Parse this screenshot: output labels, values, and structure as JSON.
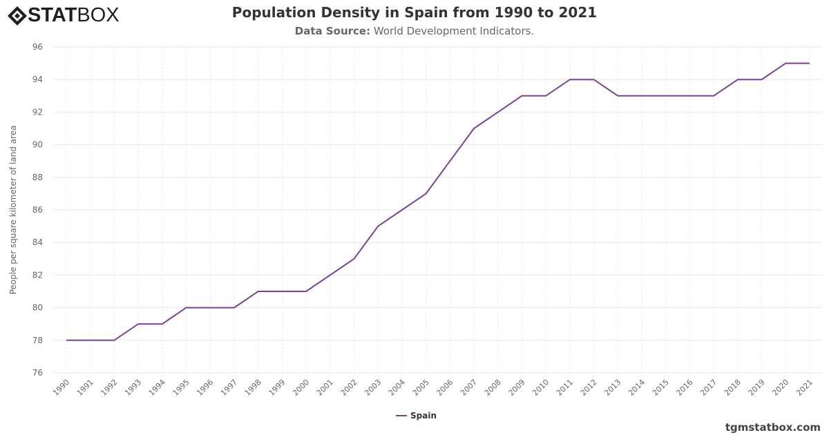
{
  "logo": {
    "bold": "STAT",
    "light": "BOX"
  },
  "header": {
    "title": "Population Density in Spain from 1990 to 2021",
    "source_label": "Data Source:",
    "source_text": " World Development Indicators."
  },
  "credit": "tgmstatbox.com",
  "chart_data": {
    "type": "line",
    "title": "Population Density in Spain from 1990 to 2021",
    "ylabel": "People per square kilometer of land area",
    "xlabel": "",
    "ylim": [
      76,
      96
    ],
    "yticks": [
      76,
      78,
      80,
      82,
      84,
      86,
      88,
      90,
      92,
      94,
      96
    ],
    "grid": true,
    "legend_position": "bottom",
    "categories": [
      "1990",
      "1991",
      "1992",
      "1993",
      "1994",
      "1995",
      "1996",
      "1997",
      "1998",
      "1999",
      "2000",
      "2001",
      "2002",
      "2003",
      "2004",
      "2005",
      "2006",
      "2007",
      "2008",
      "2009",
      "2010",
      "2011",
      "2012",
      "2013",
      "2014",
      "2015",
      "2016",
      "2017",
      "2018",
      "2019",
      "2020",
      "2021"
    ],
    "series": [
      {
        "name": "Spain",
        "color": "#7b3f99",
        "values": [
          78,
          78,
          78,
          79,
          79,
          80,
          80,
          80,
          81,
          81,
          81,
          82,
          83,
          85,
          86,
          87,
          89,
          91,
          92,
          93,
          93,
          94,
          94,
          93,
          93,
          93,
          93,
          93,
          94,
          94,
          95,
          95
        ]
      }
    ]
  }
}
